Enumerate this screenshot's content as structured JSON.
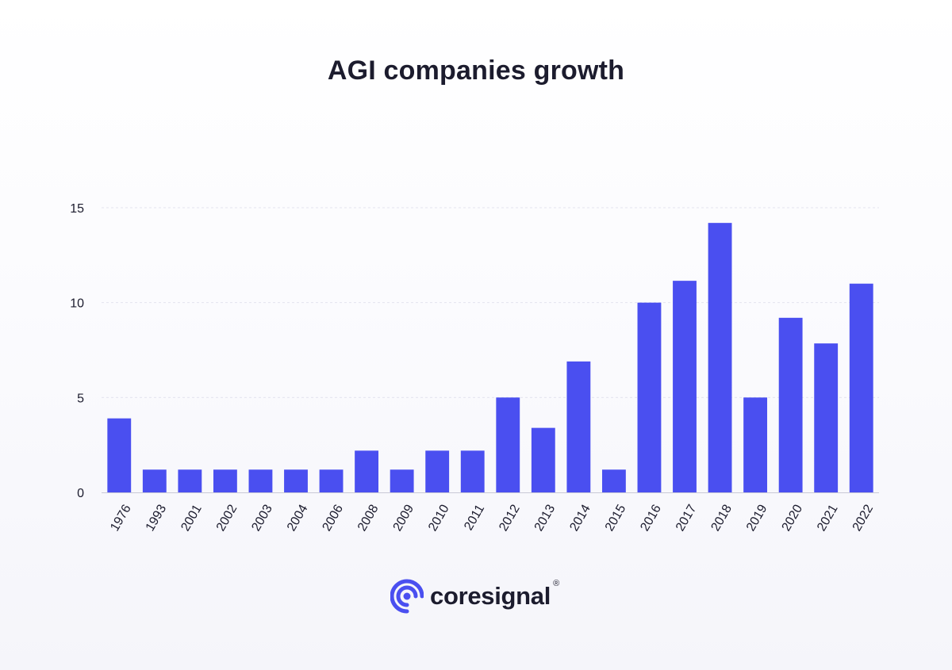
{
  "chart_data": {
    "type": "bar",
    "title": "AGI companies growth",
    "xlabel": "",
    "ylabel": "",
    "categories": [
      "1976",
      "1993",
      "2001",
      "2002",
      "2003",
      "2004",
      "2006",
      "2008",
      "2009",
      "2010",
      "2011",
      "2012",
      "2013",
      "2014",
      "2015",
      "2016",
      "2017",
      "2018",
      "2019",
      "2020",
      "2021",
      "2022"
    ],
    "values": [
      3.9,
      1.2,
      1.2,
      1.2,
      1.2,
      1.2,
      1.2,
      2.2,
      1.2,
      2.2,
      2.2,
      5.0,
      3.4,
      6.9,
      1.2,
      10.0,
      11.15,
      14.2,
      5.0,
      9.2,
      7.85,
      11.0
    ],
    "ylim": [
      0,
      15
    ],
    "yticks": [
      "0",
      "5",
      "10",
      "15"
    ],
    "grid": true,
    "legend": "none",
    "bar_color": "#4a4ff0"
  },
  "branding": {
    "logo_text": "coresignal",
    "registered_mark": "®",
    "logo_icon": "coresignal-target-icon",
    "logo_color": "#4a4ff0"
  }
}
